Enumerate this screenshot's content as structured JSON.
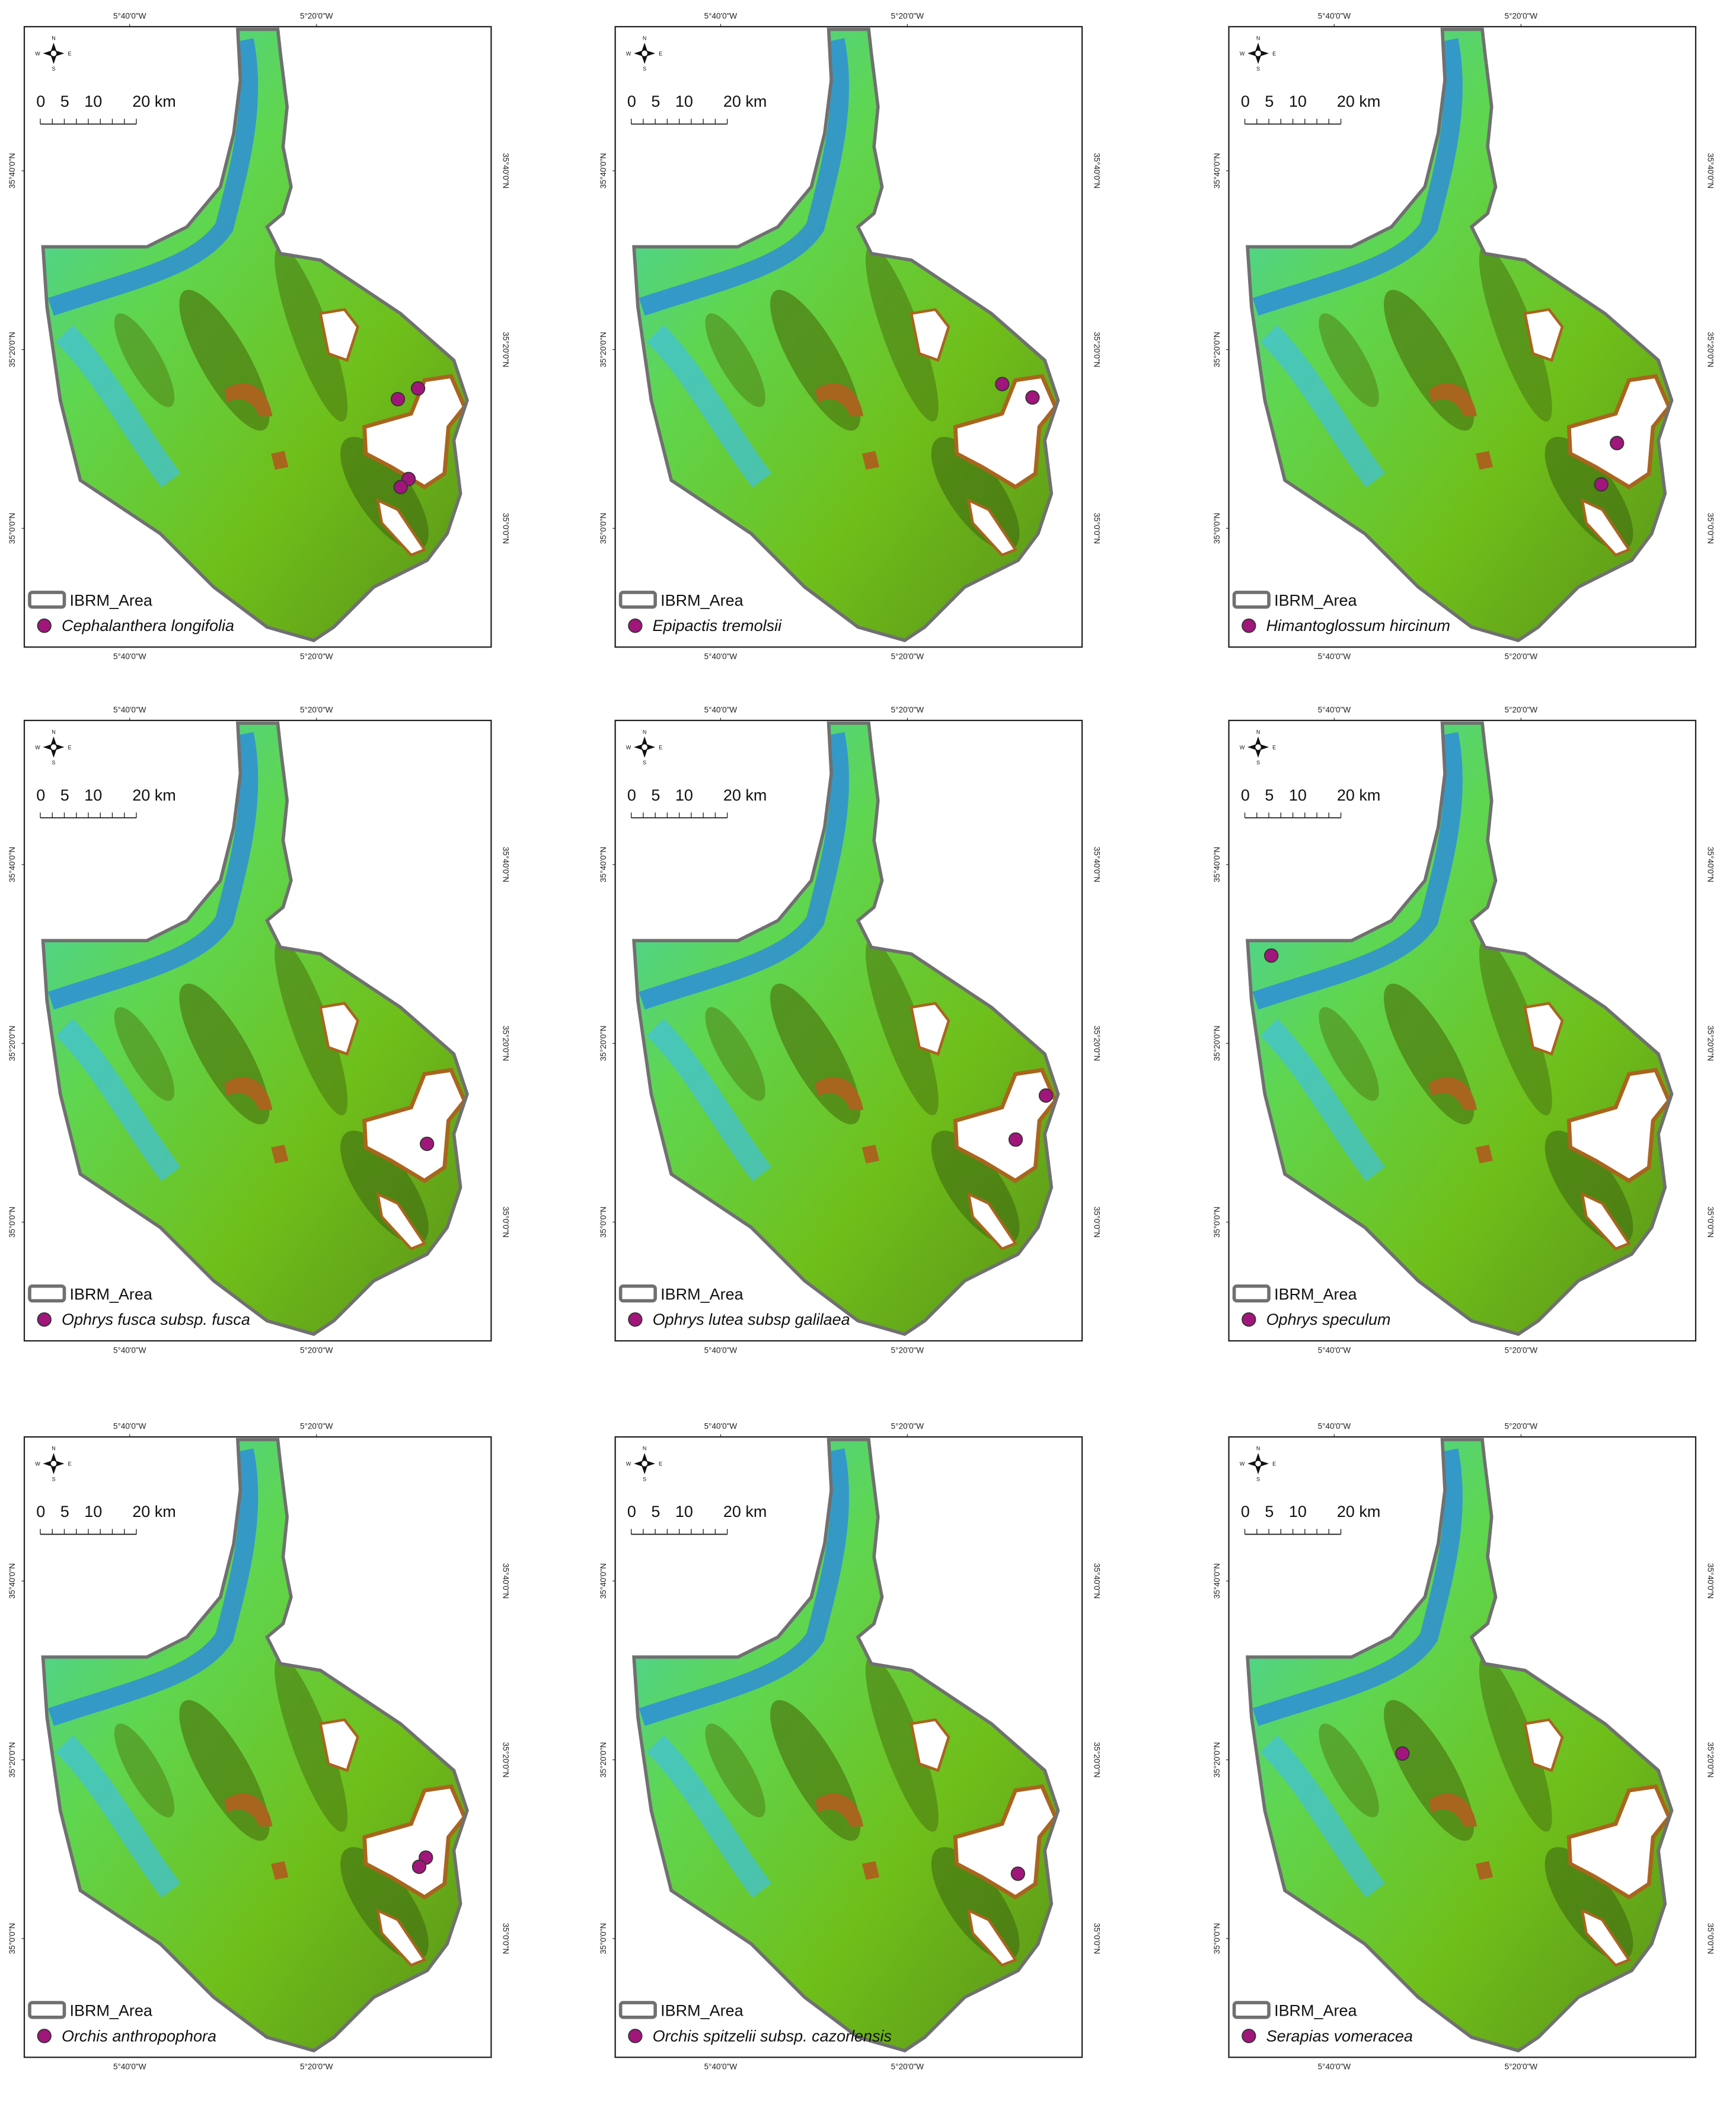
{
  "legend_area": "IBRM_Area",
  "compass": [
    "N",
    "S",
    "W",
    "E"
  ],
  "scale_bar": [
    "0",
    "5",
    "10",
    "20 km"
  ],
  "lon_ticks": [
    {
      "value": -5.6667,
      "label": "5°40'0\"W"
    },
    {
      "value": -5.3333,
      "label": "5°20'0\"W"
    }
  ],
  "lat_ticks": [
    {
      "value": 35.6667,
      "label": "35°40'0\"N"
    },
    {
      "value": 35.3333,
      "label": "35°20'0\"N"
    },
    {
      "value": 35.0,
      "label": "35°0'0\"N"
    }
  ],
  "panels": [
    {
      "species": "Cephalanthera longifolia",
      "points": [
        {
          "lon": -5.188,
          "lat": 35.241
        },
        {
          "lon": -5.152,
          "lat": 35.261
        },
        {
          "lon": -5.169,
          "lat": 35.092
        },
        {
          "lon": -5.183,
          "lat": 35.077
        }
      ]
    },
    {
      "species": "Epipactis tremolsii",
      "points": [
        {
          "lon": -5.164,
          "lat": 35.269
        },
        {
          "lon": -5.11,
          "lat": 35.244
        }
      ]
    },
    {
      "species": "Himantoglossum hircinum",
      "points": [
        {
          "lon": -5.162,
          "lat": 35.159
        },
        {
          "lon": -5.19,
          "lat": 35.082
        }
      ]
    },
    {
      "species": "Ophrys fusca subsp. fusca",
      "points": [
        {
          "lon": -5.136,
          "lat": 35.146
        }
      ]
    },
    {
      "species": "Ophrys lutea subsp galilaea",
      "points": [
        {
          "lon": -5.086,
          "lat": 35.236
        },
        {
          "lon": -5.14,
          "lat": 35.154
        }
      ]
    },
    {
      "species": "Ophrys speculum",
      "points": [
        {
          "lon": -5.779,
          "lat": 35.497
        }
      ]
    },
    {
      "species": "Orchis anthropophora",
      "points": [
        {
          "lon": -5.138,
          "lat": 35.151
        },
        {
          "lon": -5.15,
          "lat": 35.134
        }
      ]
    },
    {
      "species": "Orchis spitzelii subsp. cazorlensis",
      "points": [
        {
          "lon": -5.136,
          "lat": 35.121
        }
      ]
    },
    {
      "species": "Serapias vomeracea",
      "points": [
        {
          "lon": -5.545,
          "lat": 35.345
        }
      ]
    }
  ]
}
